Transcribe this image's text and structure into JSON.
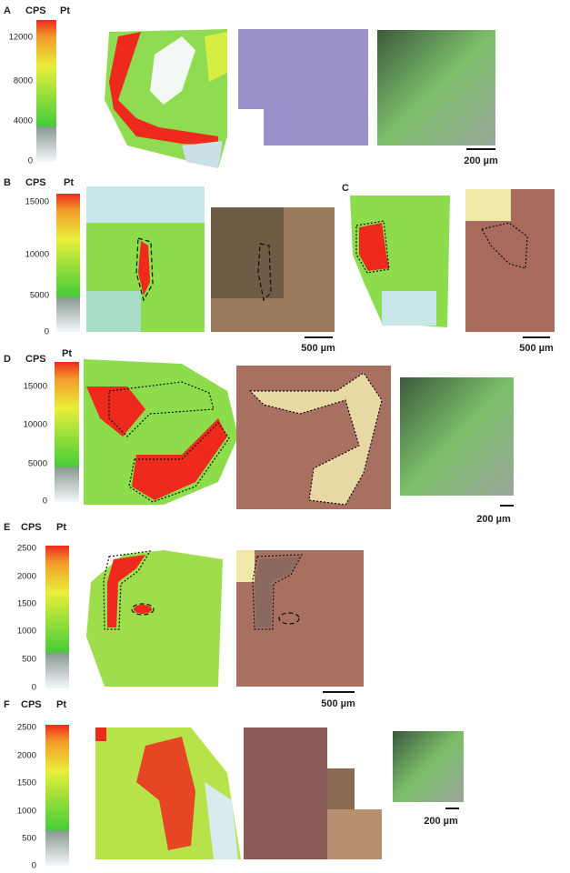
{
  "panels": [
    {
      "label": "A",
      "cps": "CPS",
      "element": "Pt",
      "ticks": [
        12000,
        8000,
        4000,
        0
      ],
      "scale_bar": "200 µm"
    },
    {
      "label": "B",
      "cps": "CPS",
      "element": "Pt",
      "ticks": [
        15000,
        10000,
        5000,
        0
      ],
      "scale_bar": "500 µm"
    },
    {
      "label": "C",
      "scale_bar": "500 µm"
    },
    {
      "label": "D",
      "cps": "CPS",
      "element": "Pt",
      "ticks": [
        15000,
        10000,
        5000,
        0
      ],
      "scale_bar": "200 µm"
    },
    {
      "label": "E",
      "cps": "CPS",
      "element": "Pt",
      "ticks": [
        2500,
        2000,
        1500,
        1000,
        500,
        0
      ],
      "scale_bar": "500 µm"
    },
    {
      "label": "F",
      "cps": "CPS",
      "element": "Pt",
      "ticks": [
        2500,
        2000,
        1500,
        1000,
        500,
        0
      ],
      "scale_bar": "200 µm"
    }
  ]
}
